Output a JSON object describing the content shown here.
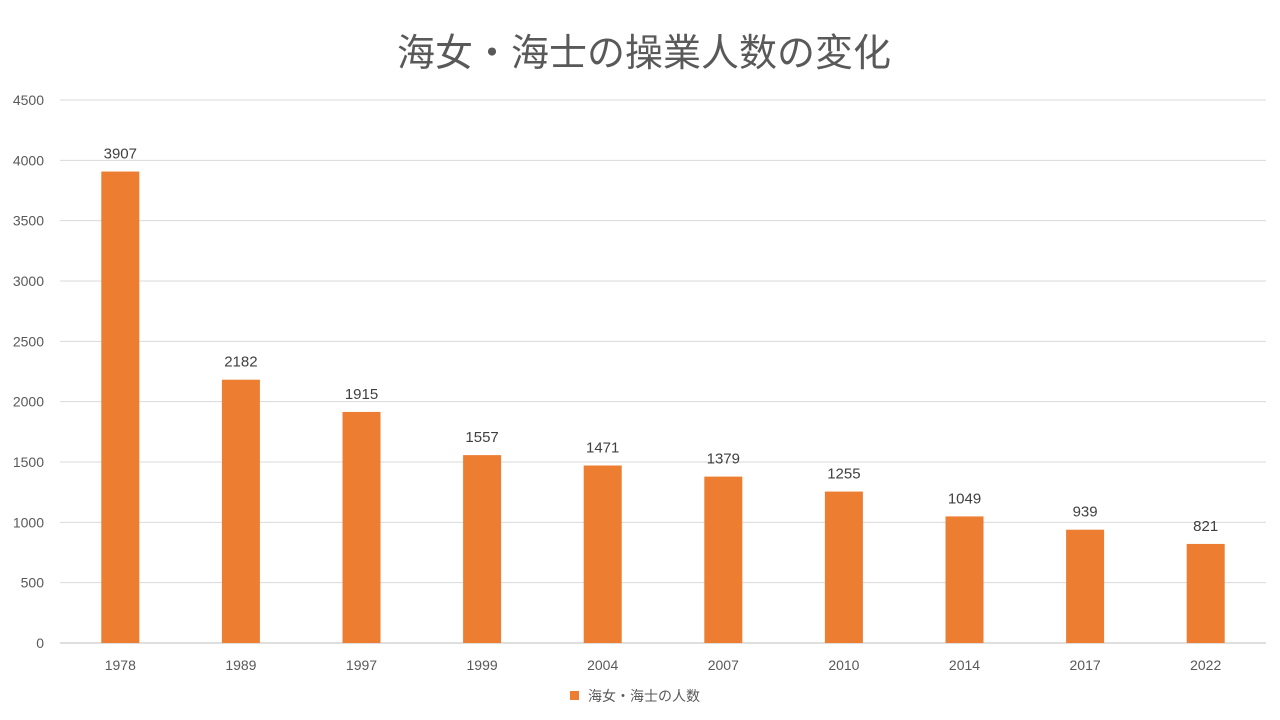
{
  "chart_data": {
    "type": "bar",
    "title": "海女・海士の操業人数の変化",
    "xlabel": "",
    "ylabel": "",
    "categories": [
      "1978",
      "1989",
      "1997",
      "1999",
      "2004",
      "2007",
      "2010",
      "2014",
      "2017",
      "2022"
    ],
    "series": [
      {
        "name": "海女・海士の人数",
        "values": [
          3907,
          2182,
          1915,
          1557,
          1471,
          1379,
          1255,
          1049,
          939,
          821
        ]
      }
    ],
    "ylim": [
      0,
      4500
    ],
    "yticks": [
      0,
      500,
      1000,
      1500,
      2000,
      2500,
      3000,
      3500,
      4000,
      4500
    ],
    "grid": true,
    "legend_position": "bottom",
    "colors": {
      "bar": "#ED7D31",
      "grid": "#D9D9D9",
      "text": "#595959"
    }
  }
}
